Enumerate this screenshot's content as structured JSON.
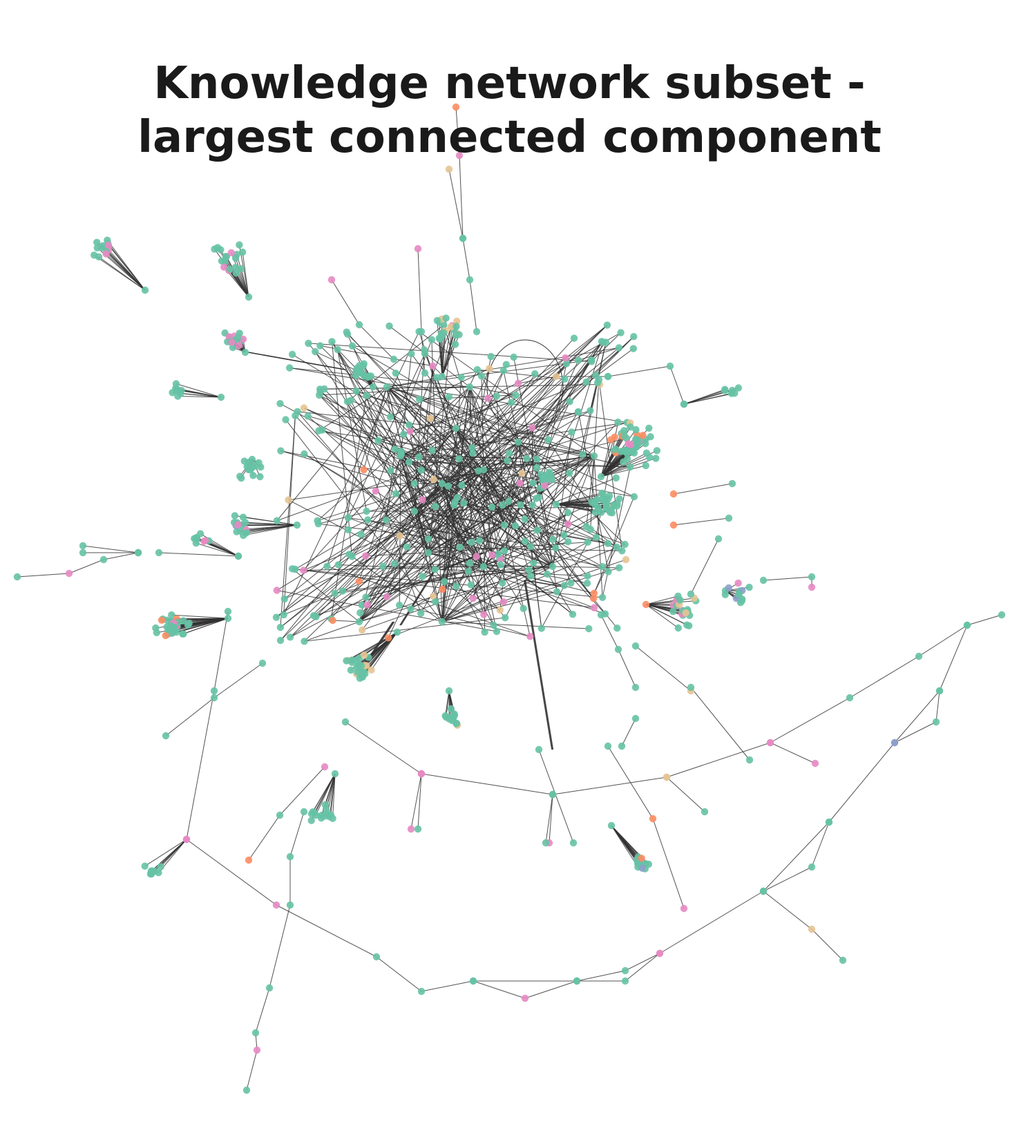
{
  "title": {
    "line1": "Knowledge network subset -",
    "line2": "largest connected component"
  },
  "palette": {
    "teal": "#66c2a5",
    "pink": "#e78ac3",
    "orange": "#fc8d62",
    "tan": "#e5c494",
    "blue": "#8da0cb",
    "edge": "#333333"
  }
}
